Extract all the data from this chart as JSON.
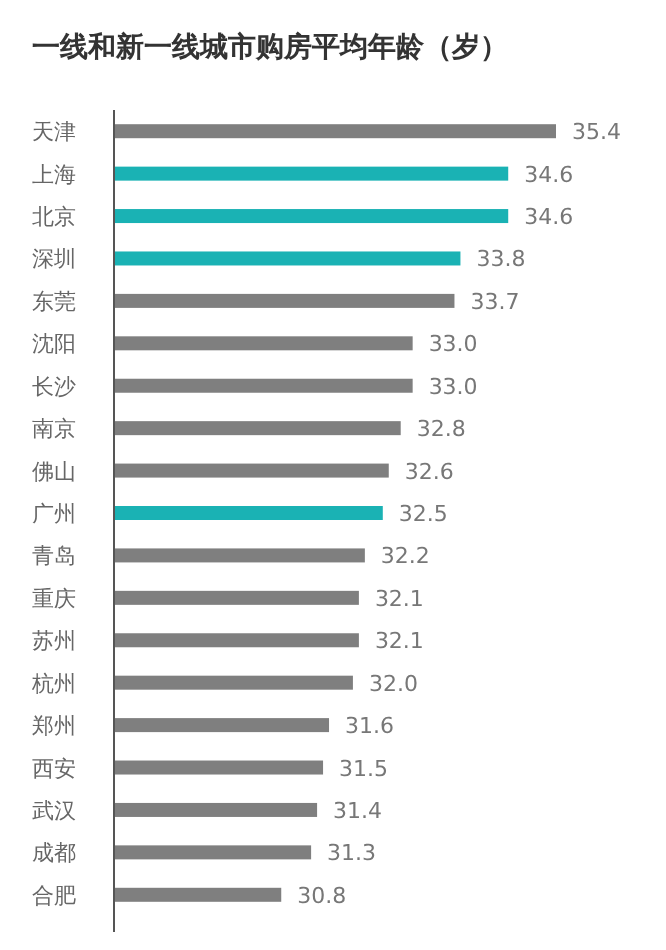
{
  "chart_data": {
    "type": "bar",
    "orientation": "horizontal",
    "title": "一线和新一线城市购房平均年龄（岁）",
    "categories": [
      "天津",
      "上海",
      "北京",
      "深圳",
      "东莞",
      "沈阳",
      "长沙",
      "南京",
      "佛山",
      "广州",
      "青岛",
      "重庆",
      "苏州",
      "杭州",
      "郑州",
      "西安",
      "武汉",
      "成都",
      "合肥"
    ],
    "values": [
      35.4,
      34.6,
      34.6,
      33.8,
      33.7,
      33.0,
      33.0,
      32.8,
      32.6,
      32.5,
      32.2,
      32.1,
      32.1,
      32.0,
      31.6,
      31.5,
      31.4,
      31.3,
      30.8
    ],
    "colors": [
      "#7f7f7f",
      "#1ab2b4",
      "#1ab2b4",
      "#1ab2b4",
      "#7f7f7f",
      "#7f7f7f",
      "#7f7f7f",
      "#7f7f7f",
      "#7f7f7f",
      "#1ab2b4",
      "#7f7f7f",
      "#7f7f7f",
      "#7f7f7f",
      "#7f7f7f",
      "#7f7f7f",
      "#7f7f7f",
      "#7f7f7f",
      "#7f7f7f",
      "#7f7f7f"
    ],
    "xlim": [
      28,
      35.4
    ],
    "value_labels": [
      "35.4",
      "34.6",
      "34.6",
      "33.8",
      "33.7",
      "33.0",
      "33.0",
      "32.8",
      "32.6",
      "32.5",
      "32.2",
      "32.1",
      "32.1",
      "32.0",
      "31.6",
      "31.5",
      "31.4",
      "31.3",
      "30.8"
    ]
  }
}
